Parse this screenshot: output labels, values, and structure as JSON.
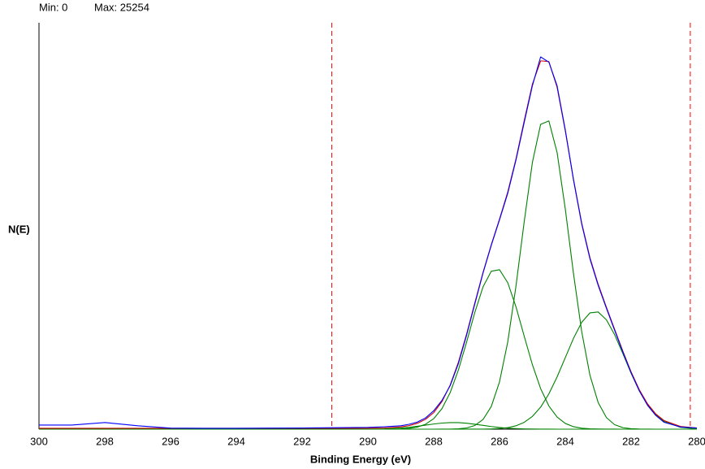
{
  "chart_data": {
    "type": "line",
    "min_label": "Min: 0",
    "max_label": "Max: 25254",
    "y_label": "N(E)",
    "x_label": "Binding Energy (eV)",
    "xlim": [
      300,
      280
    ],
    "ylim": [
      0,
      27570
    ],
    "xticks": [
      300,
      298,
      296,
      294,
      292,
      290,
      288,
      286,
      284,
      282,
      280
    ],
    "markers": [
      291.1,
      280.2
    ],
    "marker_color": "#ff0000",
    "x": [
      300,
      299,
      298,
      297,
      296,
      295,
      294,
      293,
      292,
      291,
      290,
      289.5,
      289,
      288.75,
      288.5,
      288.25,
      288,
      287.75,
      287.5,
      287.25,
      287,
      286.75,
      286.5,
      286.25,
      286,
      285.75,
      285.5,
      285.25,
      285,
      284.75,
      284.5,
      284.25,
      284,
      283.75,
      283.5,
      283.25,
      283,
      282.75,
      282.5,
      282.25,
      282,
      281.75,
      281.5,
      281.25,
      281,
      280.5,
      280
    ],
    "series": [
      {
        "color": "#008000",
        "values": [
          0,
          0,
          0,
          0,
          0,
          0,
          0,
          0,
          0,
          0,
          0,
          0,
          0,
          0,
          0,
          0,
          0,
          2,
          6,
          25,
          83,
          249,
          657,
          1540,
          3210,
          5914,
          9694,
          14066,
          18100,
          20677,
          20910,
          18776,
          14932,
          10539,
          6600,
          3654,
          1804,
          786,
          304,
          104,
          32,
          9,
          2,
          0,
          0,
          0,
          0
        ]
      },
      {
        "color": "#008000",
        "values": [
          0,
          0,
          0,
          0,
          0,
          0,
          0,
          0,
          0,
          0,
          0,
          2,
          19,
          54,
          141,
          332,
          712,
          1394,
          2481,
          4013,
          5911,
          7924,
          9658,
          10715,
          10818,
          9939,
          8306,
          6312,
          4371,
          2752,
          1576,
          822,
          390,
          168,
          65,
          24,
          8,
          2,
          1,
          0,
          0,
          0,
          0,
          0,
          0,
          0,
          0
        ]
      },
      {
        "color": "#008000",
        "values": [
          0,
          0,
          0,
          0,
          0,
          0,
          0,
          0,
          0,
          0,
          0,
          0,
          0,
          0,
          0,
          0,
          0,
          0,
          0,
          0,
          1,
          2,
          6,
          18,
          45,
          105,
          230,
          463,
          866,
          1493,
          2391,
          3542,
          4856,
          6167,
          7249,
          7890,
          7951,
          7418,
          6408,
          5127,
          3794,
          2603,
          1653,
          971,
          528,
          124,
          21
        ]
      },
      {
        "color": "#008000",
        "values": [
          0,
          0,
          0,
          0,
          0,
          0,
          0,
          0,
          0,
          0,
          4,
          21,
          77,
          128,
          195,
          273,
          351,
          413,
          447,
          443,
          403,
          336,
          257,
          180,
          116,
          68,
          37,
          18,
          8,
          3,
          1,
          0,
          0,
          0,
          0,
          0,
          0,
          0,
          0,
          0,
          0,
          0,
          0,
          0,
          0,
          0,
          0
        ]
      },
      {
        "color": "#cc0000",
        "values": [
          60,
          60,
          60,
          60,
          60,
          60,
          60,
          60,
          60,
          60,
          64,
          83,
          156,
          242,
          396,
          665,
          1123,
          1869,
          2994,
          4541,
          6458,
          8571,
          10638,
          12513,
          14249,
          16086,
          18327,
          20919,
          23405,
          24985,
          24938,
          23200,
          20238,
          16934,
          13974,
          11628,
          9823,
          8266,
          6773,
          5291,
          3886,
          2672,
          1715,
          1031,
          588,
          184,
          81
        ]
      },
      {
        "color": "#0000ff",
        "values": [
          280,
          280,
          450,
          230,
          70,
          60,
          60,
          70,
          80,
          100,
          120,
          160,
          230,
          330,
          480,
          760,
          1250,
          1950,
          2950,
          4450,
          6380,
          8500,
          10600,
          12480,
          14200,
          16000,
          18250,
          20800,
          23300,
          25254,
          24900,
          23300,
          20300,
          16900,
          13900,
          11550,
          9750,
          8200,
          6700,
          5230,
          3830,
          2600,
          1620,
          930,
          470,
          150,
          80
        ]
      }
    ]
  }
}
